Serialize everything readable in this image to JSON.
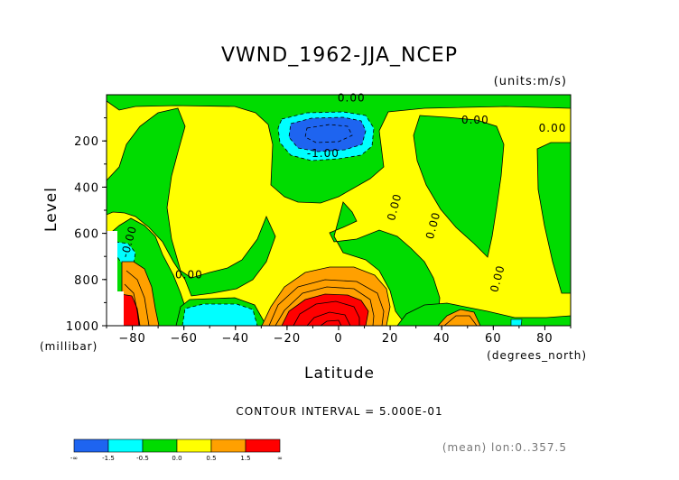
{
  "chart_data": {
    "type": "heatmap",
    "title": "VWND_1962-JJA_NCEP",
    "units": "(units:m/s)",
    "xlabel": "Latitude",
    "xunits": "(degrees_north)",
    "ylabel": "Level",
    "yunits": "(millibar)",
    "xlim": [
      -90,
      90
    ],
    "ylim": [
      1000,
      0
    ],
    "xticks": [
      -80,
      -60,
      -40,
      -20,
      0,
      20,
      40,
      60,
      80
    ],
    "xtick_labels": [
      "−80",
      "−60",
      "−40",
      "−20",
      "0",
      "20",
      "40",
      "60",
      "80"
    ],
    "yticks": [
      200,
      400,
      600,
      800,
      1000
    ],
    "contour_interval_text": "CONTOUR INTERVAL = 5.000E-01",
    "mean_note": "(mean) lon:0..357.5",
    "contour_labels": [
      {
        "text": "0.00",
        "lat": 5,
        "lev": 30
      },
      {
        "text": "0.00",
        "lat": 53,
        "lev": 125
      },
      {
        "text": "0.00",
        "lat": 83,
        "lev": 160
      },
      {
        "text": "-1.00",
        "lat": -6,
        "lev": 270
      },
      {
        "text": "0.00",
        "lat": 23,
        "lev": 490
      },
      {
        "text": "0.00",
        "lat": 38,
        "lev": 570
      },
      {
        "text": "-0.00",
        "lat": -80,
        "lev": 640
      },
      {
        "text": "0.00",
        "lat": -58,
        "lev": 795
      },
      {
        "text": "0.00",
        "lat": 63,
        "lev": 800
      }
    ],
    "legend": {
      "bins": [
        "<-1.5",
        "-1.5 to -0.5",
        "-0.5 to 0.0",
        "0.0 to 0.5",
        "0.5 to 1.5",
        ">1.5"
      ],
      "labels": [
        "-∞",
        "-1.5",
        "-0.5",
        "0.0",
        "0.5",
        "1.5",
        "∞"
      ],
      "colors": [
        "#1e64f0",
        "#00ffff",
        "#00dc00",
        "#ffff00",
        "#ffa000",
        "#ff0000"
      ]
    },
    "grid": false
  }
}
